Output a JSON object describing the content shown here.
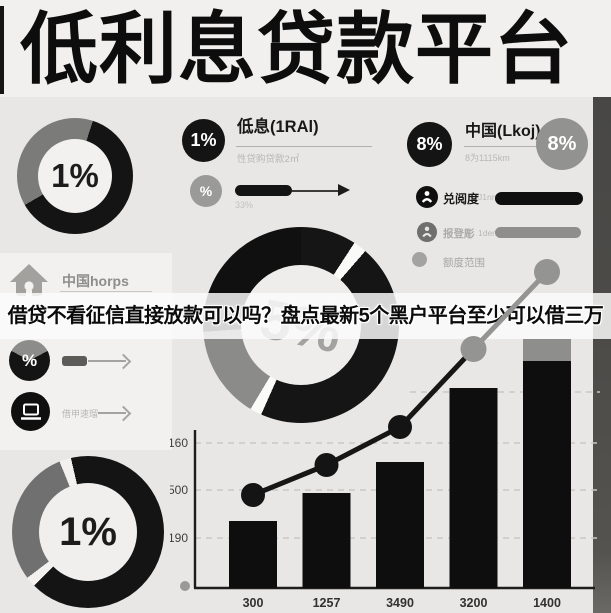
{
  "colors": {
    "ink": "#121212",
    "gray": "#8f8f8d",
    "background": "#e8e7e5",
    "strip": "#4a4846",
    "band": "#f5f4f2"
  },
  "title": {
    "text": "低利息贷款平台"
  },
  "headline": {
    "text": "借贷不看征信直接放款可以吗？盘点最新5个黑户平台至少可以借三万"
  },
  "card_low_interest": {
    "badge": "1%",
    "heading": "低息(1RAl)",
    "subtext": "性贷购贷款2㎡",
    "badge2": "%",
    "note": "33%"
  },
  "card_china": {
    "badge": "8%",
    "heading": "中国(Lkoj)",
    "subtext": "8为1115km",
    "badge2": "8%",
    "rows": [
      {
        "label": "兑阅度",
        "sub": "J1nm"
      },
      {
        "label": "报登彫",
        "sub": "1den"
      },
      {
        "label": "额度范围",
        "sub": ""
      }
    ]
  },
  "card_home": {
    "label": "中国horps",
    "badge": "%",
    "row2_label": "借甲速瑠",
    "mini_donut_segments": [
      {
        "color": "#8c8c8a",
        "from": 0,
        "to": 62
      },
      {
        "color": "#141414",
        "from": 62,
        "to": 298
      },
      {
        "color": "#8c8c8a",
        "from": 298,
        "to": 360
      }
    ]
  },
  "chart_data": [
    {
      "type": "donut",
      "position": "top-left",
      "center_label": "1%",
      "segments": [
        {
          "color": "#7b7b79",
          "from": 0,
          "to": 18
        },
        {
          "color": "#141414",
          "from": 18,
          "to": 240
        },
        {
          "color": "#7b7b79",
          "from": 240,
          "to": 360
        }
      ]
    },
    {
      "type": "donut",
      "position": "center",
      "center_label": "5%",
      "segments": [
        {
          "color": "#151515",
          "from": 0,
          "to": 33
        },
        {
          "color": "#fafaf8",
          "from": 33,
          "to": 41
        },
        {
          "color": "#151515",
          "from": 41,
          "to": 204
        },
        {
          "color": "#fafaf8",
          "from": 204,
          "to": 211
        },
        {
          "color": "#8b8b89",
          "from": 211,
          "to": 266
        },
        {
          "color": "#101010",
          "from": 266,
          "to": 360
        }
      ]
    },
    {
      "type": "donut",
      "position": "bottom-left",
      "center_label": "1%",
      "segments": [
        {
          "color": "#141414",
          "from": 0,
          "to": 225
        },
        {
          "color": "#f2f1ef",
          "from": 225,
          "to": 233
        },
        {
          "color": "#707070",
          "from": 233,
          "to": 338
        },
        {
          "color": "#f2f1ef",
          "from": 338,
          "to": 347
        },
        {
          "color": "#141414",
          "from": 347,
          "to": 360
        }
      ]
    },
    {
      "type": "bar-line",
      "legend": "额度范围",
      "x_labels": [
        "300",
        "1257",
        "3490",
        "3200",
        "1400"
      ],
      "bar_values": [
        67,
        95,
        126,
        200,
        249
      ],
      "bar_top_caps": [
        0,
        0,
        0,
        0,
        22
      ],
      "line_values": [
        93,
        123,
        161,
        239,
        316
      ],
      "dot_colors": [
        "black",
        "black",
        "black",
        "gray",
        "gray"
      ],
      "segment_colors": [
        "black",
        "black",
        "black",
        "gray"
      ],
      "y_ticks": [
        {
          "label": "",
          "offset": 196
        },
        {
          "label": "160",
          "offset": 145
        },
        {
          "label": "500",
          "offset": 98
        },
        {
          "label": "190",
          "offset": 50
        }
      ]
    }
  ]
}
